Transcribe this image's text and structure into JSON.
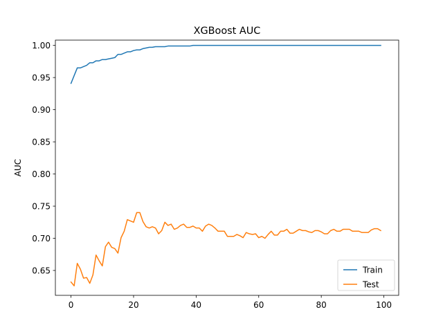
{
  "chart_data": {
    "type": "line",
    "title": "XGBoost AUC",
    "xlabel": "",
    "ylabel": "AUC",
    "xlim": [
      -5,
      104.75
    ],
    "ylim": [
      0.6113,
      1.0082
    ],
    "xticks": [
      0,
      20,
      40,
      60,
      80,
      100
    ],
    "yticks": [
      0.65,
      0.7,
      0.75,
      0.8,
      0.85,
      0.9,
      0.95,
      1.0
    ],
    "xtick_labels": [
      "0",
      "20",
      "40",
      "60",
      "80",
      "100"
    ],
    "ytick_labels": [
      "0.65",
      "0.70",
      "0.75",
      "0.80",
      "0.85",
      "0.90",
      "0.95",
      "1.00"
    ],
    "legend_position": "lower-right",
    "grid": false,
    "x": [
      0,
      1,
      2,
      3,
      4,
      5,
      6,
      7,
      8,
      9,
      10,
      11,
      12,
      13,
      14,
      15,
      16,
      17,
      18,
      19,
      20,
      21,
      22,
      23,
      24,
      25,
      26,
      27,
      28,
      29,
      30,
      31,
      32,
      33,
      34,
      35,
      36,
      37,
      38,
      39,
      40,
      41,
      42,
      43,
      44,
      45,
      46,
      47,
      48,
      49,
      50,
      51,
      52,
      53,
      54,
      55,
      56,
      57,
      58,
      59,
      60,
      61,
      62,
      63,
      64,
      65,
      66,
      67,
      68,
      69,
      70,
      71,
      72,
      73,
      74,
      75,
      76,
      77,
      78,
      79,
      80,
      81,
      82,
      83,
      84,
      85,
      86,
      87,
      88,
      89,
      90,
      91,
      92,
      93,
      94,
      95,
      96,
      97,
      98,
      99
    ],
    "series": [
      {
        "name": "Train",
        "color": "#1f77b4",
        "values": [
          0.941,
          0.953,
          0.965,
          0.965,
          0.967,
          0.969,
          0.973,
          0.973,
          0.976,
          0.976,
          0.978,
          0.978,
          0.979,
          0.98,
          0.981,
          0.986,
          0.986,
          0.988,
          0.99,
          0.99,
          0.992,
          0.993,
          0.993,
          0.995,
          0.996,
          0.997,
          0.997,
          0.998,
          0.998,
          0.998,
          0.998,
          0.999,
          0.999,
          0.999,
          0.999,
          0.999,
          0.999,
          0.999,
          0.999,
          1.0,
          1.0,
          1.0,
          1.0,
          1.0,
          1.0,
          1.0,
          1.0,
          1.0,
          1.0,
          1.0,
          1.0,
          1.0,
          1.0,
          1.0,
          1.0,
          1.0,
          1.0,
          1.0,
          1.0,
          1.0,
          1.0,
          1.0,
          1.0,
          1.0,
          1.0,
          1.0,
          1.0,
          1.0,
          1.0,
          1.0,
          1.0,
          1.0,
          1.0,
          1.0,
          1.0,
          1.0,
          1.0,
          1.0,
          1.0,
          1.0,
          1.0,
          1.0,
          1.0,
          1.0,
          1.0,
          1.0,
          1.0,
          1.0,
          1.0,
          1.0,
          1.0,
          1.0,
          1.0,
          1.0,
          1.0,
          1.0,
          1.0,
          1.0,
          1.0,
          1.0
        ]
      },
      {
        "name": "Test",
        "color": "#ff7f0e",
        "values": [
          0.632,
          0.626,
          0.661,
          0.652,
          0.638,
          0.639,
          0.63,
          0.643,
          0.674,
          0.665,
          0.657,
          0.687,
          0.694,
          0.686,
          0.684,
          0.677,
          0.701,
          0.711,
          0.729,
          0.727,
          0.725,
          0.74,
          0.74,
          0.726,
          0.718,
          0.716,
          0.718,
          0.716,
          0.707,
          0.712,
          0.725,
          0.72,
          0.722,
          0.714,
          0.716,
          0.72,
          0.722,
          0.717,
          0.717,
          0.719,
          0.716,
          0.716,
          0.711,
          0.719,
          0.722,
          0.72,
          0.716,
          0.711,
          0.711,
          0.711,
          0.703,
          0.703,
          0.703,
          0.706,
          0.704,
          0.701,
          0.709,
          0.707,
          0.706,
          0.707,
          0.701,
          0.703,
          0.7,
          0.706,
          0.711,
          0.705,
          0.705,
          0.711,
          0.711,
          0.714,
          0.708,
          0.708,
          0.711,
          0.714,
          0.712,
          0.712,
          0.71,
          0.709,
          0.712,
          0.712,
          0.71,
          0.707,
          0.707,
          0.712,
          0.714,
          0.711,
          0.711,
          0.714,
          0.714,
          0.714,
          0.711,
          0.711,
          0.711,
          0.709,
          0.709,
          0.709,
          0.713,
          0.715,
          0.715,
          0.712
        ]
      }
    ]
  }
}
